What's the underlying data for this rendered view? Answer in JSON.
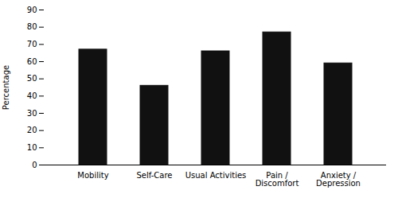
{
  "chart_data": {
    "type": "bar",
    "categories": [
      "Mobility",
      "Self-Care",
      "Usual Activities",
      "Pain /\nDiscomfort",
      "Anxiety /\nDepression"
    ],
    "values": [
      67,
      46,
      66,
      77,
      59
    ],
    "color": "#111111",
    "ylabel": "Percentage",
    "ylim": [
      0,
      90
    ],
    "yticks": [
      0,
      10,
      20,
      30,
      40,
      50,
      60,
      70,
      80,
      90
    ],
    "grid": false
  }
}
